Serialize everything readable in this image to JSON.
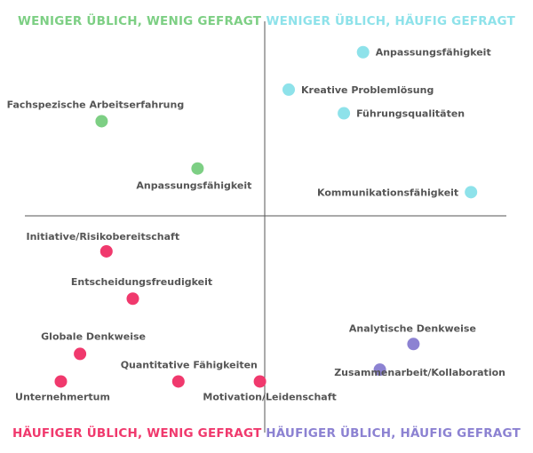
{
  "chart_data": {
    "type": "scatter",
    "title": "",
    "xlabel": "",
    "ylabel": "",
    "grid": false,
    "quadrants": [
      {
        "key": "tl",
        "label": "WENIGER ÜBLICH, WENIG GEFRAGT",
        "color": "#7dcf84"
      },
      {
        "key": "tr",
        "label": "WENIGER ÜBLICH, HÄUFIG GEFRAGT",
        "color": "#8ee2ea"
      },
      {
        "key": "bl",
        "label": "HÄUFIGER ÜBLICH, WENIG GEFRAGT",
        "color": "#f0396d"
      },
      {
        "key": "br",
        "label": "HÄUFIGER ÜBLICH, HÄUFIG GEFRAGT",
        "color": "#8c82d2"
      }
    ],
    "points": [
      {
        "label": "Anpassungsfähigkeit",
        "q": "tr",
        "x": 0.41,
        "y": 0.83
      },
      {
        "label": "Kreative Problemlösung",
        "q": "tr",
        "x": 0.1,
        "y": 0.64
      },
      {
        "label": "Führungsqualitäten",
        "q": "tr",
        "x": 0.33,
        "y": 0.52
      },
      {
        "label": "Kommunikationsfähigkeit",
        "q": "tr",
        "x": 0.86,
        "y": 0.12
      },
      {
        "label": "Fachspezische Arbeitserfahrung",
        "q": "tl",
        "x": -0.68,
        "y": 0.48
      },
      {
        "label": "Anpassungsfähigkeit",
        "q": "tl",
        "x": -0.28,
        "y": 0.24
      },
      {
        "label": "Initiative/Risikobereitschaft",
        "q": "bl",
        "x": -0.66,
        "y": -0.18
      },
      {
        "label": "Entscheidungsfreudigkeit",
        "q": "bl",
        "x": -0.55,
        "y": -0.42
      },
      {
        "label": "Globale Denkweise",
        "q": "bl",
        "x": -0.77,
        "y": -0.7
      },
      {
        "label": "Unternehmertum",
        "q": "bl",
        "x": -0.85,
        "y": -0.84
      },
      {
        "label": "Quantitative Fähigkeiten",
        "q": "bl",
        "x": -0.36,
        "y": -0.84
      },
      {
        "label": "Motivation/Leidenschaft",
        "q": "bl",
        "x": -0.02,
        "y": -0.84
      },
      {
        "label": "Analytische Denkweise",
        "q": "br",
        "x": 0.62,
        "y": -0.65
      },
      {
        "label": "Zusammenarbeit/Kollaboration",
        "q": "br",
        "x": 0.48,
        "y": -0.78
      }
    ]
  }
}
